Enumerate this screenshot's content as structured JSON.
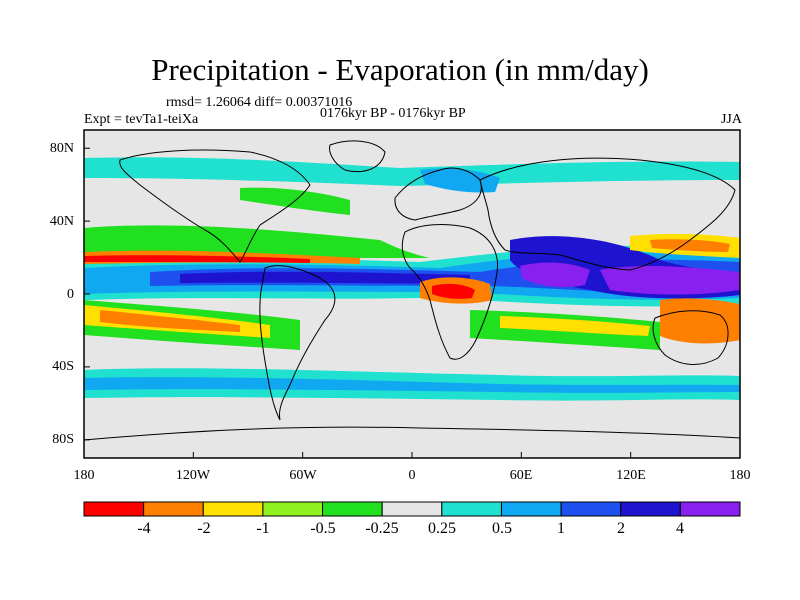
{
  "header": {
    "title": "Precipitation - Evaporation (in mm/day)",
    "stats": "rmsd= 1.26064 diff= 0.00371016",
    "experiment": "Expt = tevTa1-teiXa",
    "period": "0176kyr BP - 0176kyr BP",
    "season": "JJA"
  },
  "axes": {
    "y_ticks": [
      "80N",
      "40N",
      "0",
      "40S",
      "80S"
    ],
    "x_ticks": [
      "180",
      "120W",
      "60W",
      "0",
      "60E",
      "120E",
      "180"
    ]
  },
  "colorbar": {
    "labels": [
      "-4",
      "-2",
      "-1",
      "-0.5",
      "-0.25",
      "0.25",
      "0.5",
      "1",
      "2",
      "4"
    ],
    "colors": [
      "#ff0000",
      "#ff8000",
      "#ffe000",
      "#90f020",
      "#20e020",
      "#e6e6e6",
      "#20e0d0",
      "#10a8f0",
      "#1e50f0",
      "#1e14d0",
      "#8a20f0"
    ]
  },
  "map": {
    "background": "#e6e6e6",
    "lon_range": [
      -180,
      180
    ],
    "lat_range": [
      -90,
      90
    ]
  }
}
